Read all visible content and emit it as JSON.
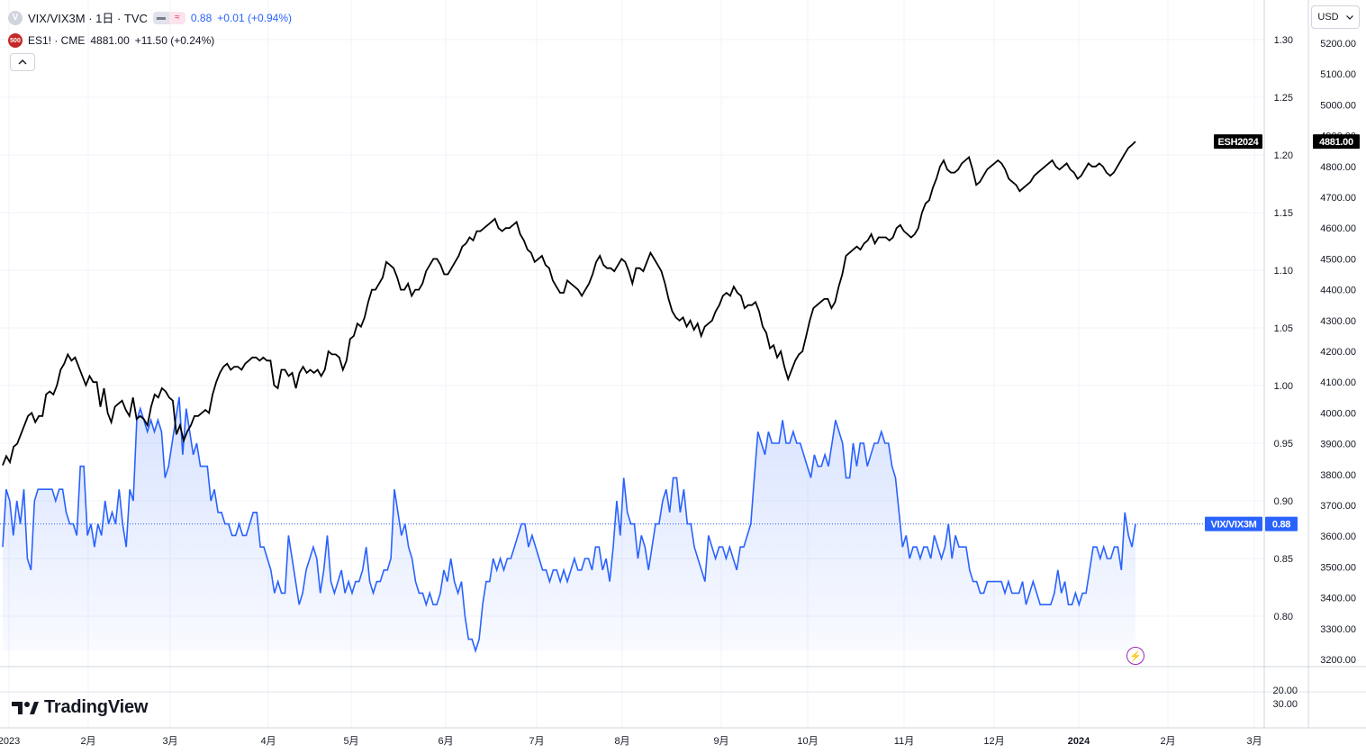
{
  "legend": {
    "main_symbol": "VIX/VIX3M · 1日 · TVC",
    "main_badge": "V",
    "main_price": "0.88",
    "main_change": "+0.01 (+0.94%)",
    "compare_badge": "500",
    "compare_symbol": "ES1! · CME",
    "compare_price": "4881.00",
    "compare_change": "+11.50 (+0.24%)",
    "collapse_icon": "chevron-up-icon"
  },
  "toolbar": {
    "currency": "USD"
  },
  "branding": {
    "logo_text": "TradingView"
  },
  "colors": {
    "vix_line": "#2962ff",
    "es_line": "#000000",
    "grid": "#f0f3fa",
    "accent_purple": "#9c27b0"
  },
  "chart_data": [
    {
      "type": "line",
      "title": "VIX/VIX3M",
      "x_tick_labels": [
        "2023",
        "2月",
        "3月",
        "4月",
        "5月",
        "6月",
        "7月",
        "8月",
        "9月",
        "10月",
        "11月",
        "12月",
        "2024",
        "2月",
        "3月"
      ],
      "y_ticks_left": [
        "1.30",
        "1.25",
        "1.20",
        "1.15",
        "1.10",
        "1.05",
        "1.00",
        "0.95",
        "0.90",
        "0.85",
        "0.80"
      ],
      "y_ticks_right": [
        "5200.00",
        "5100.00",
        "5000.00",
        "4900.00",
        "4800.00",
        "4700.00",
        "4600.00",
        "4500.00",
        "4400.00",
        "4300.00",
        "4200.00",
        "4100.00",
        "4000.00",
        "3900.00",
        "3800.00",
        "3700.00",
        "3600.00",
        "3500.00",
        "3400.00",
        "3300.00",
        "3200.00"
      ],
      "pane2_ticks": [
        "20.00",
        "30.00"
      ],
      "series": [
        {
          "name": "VIX/VIX3M",
          "last_label": "VIX/VIX3M",
          "last_value": "0.88",
          "values": [
            0.86,
            0.91,
            0.9,
            0.87,
            0.9,
            0.88,
            0.91,
            0.85,
            0.84,
            0.9,
            0.91,
            0.91,
            0.91,
            0.91,
            0.91,
            0.9,
            0.91,
            0.91,
            0.89,
            0.88,
            0.88,
            0.87,
            0.93,
            0.93,
            0.87,
            0.88,
            0.86,
            0.88,
            0.87,
            0.9,
            0.88,
            0.89,
            0.88,
            0.91,
            0.88,
            0.86,
            0.91,
            0.9,
            0.97,
            0.98,
            0.97,
            0.96,
            0.97,
            0.96,
            0.97,
            0.96,
            0.92,
            0.93,
            0.95,
            0.97,
            0.99,
            0.94,
            0.98,
            0.96,
            0.94,
            0.95,
            0.93,
            0.93,
            0.93,
            0.9,
            0.91,
            0.89,
            0.89,
            0.88,
            0.88,
            0.87,
            0.87,
            0.88,
            0.87,
            0.87,
            0.88,
            0.89,
            0.89,
            0.86,
            0.86,
            0.85,
            0.84,
            0.82,
            0.83,
            0.82,
            0.82,
            0.87,
            0.85,
            0.83,
            0.81,
            0.82,
            0.84,
            0.85,
            0.86,
            0.85,
            0.82,
            0.84,
            0.87,
            0.83,
            0.82,
            0.83,
            0.84,
            0.82,
            0.83,
            0.82,
            0.83,
            0.83,
            0.84,
            0.86,
            0.83,
            0.82,
            0.83,
            0.83,
            0.84,
            0.84,
            0.85,
            0.91,
            0.89,
            0.87,
            0.88,
            0.86,
            0.85,
            0.83,
            0.82,
            0.82,
            0.81,
            0.82,
            0.81,
            0.81,
            0.82,
            0.84,
            0.83,
            0.85,
            0.83,
            0.82,
            0.83,
            0.8,
            0.78,
            0.78,
            0.77,
            0.78,
            0.81,
            0.83,
            0.83,
            0.85,
            0.84,
            0.85,
            0.84,
            0.85,
            0.85,
            0.86,
            0.87,
            0.88,
            0.88,
            0.86,
            0.87,
            0.86,
            0.85,
            0.84,
            0.84,
            0.83,
            0.84,
            0.84,
            0.83,
            0.84,
            0.83,
            0.84,
            0.85,
            0.84,
            0.84,
            0.85,
            0.85,
            0.84,
            0.86,
            0.86,
            0.84,
            0.85,
            0.83,
            0.86,
            0.9,
            0.87,
            0.92,
            0.89,
            0.88,
            0.88,
            0.85,
            0.87,
            0.86,
            0.84,
            0.86,
            0.88,
            0.88,
            0.9,
            0.91,
            0.89,
            0.92,
            0.92,
            0.89,
            0.91,
            0.88,
            0.88,
            0.86,
            0.85,
            0.84,
            0.83,
            0.87,
            0.86,
            0.85,
            0.86,
            0.86,
            0.85,
            0.86,
            0.85,
            0.84,
            0.86,
            0.86,
            0.87,
            0.88,
            0.92,
            0.96,
            0.95,
            0.94,
            0.96,
            0.95,
            0.95,
            0.95,
            0.97,
            0.95,
            0.95,
            0.96,
            0.95,
            0.95,
            0.94,
            0.93,
            0.92,
            0.94,
            0.93,
            0.93,
            0.94,
            0.93,
            0.95,
            0.97,
            0.96,
            0.95,
            0.92,
            0.92,
            0.95,
            0.93,
            0.95,
            0.95,
            0.93,
            0.94,
            0.95,
            0.95,
            0.96,
            0.95,
            0.95,
            0.93,
            0.92,
            0.89,
            0.86,
            0.87,
            0.85,
            0.86,
            0.86,
            0.85,
            0.86,
            0.86,
            0.85,
            0.87,
            0.86,
            0.85,
            0.86,
            0.88,
            0.85,
            0.87,
            0.86,
            0.86,
            0.86,
            0.84,
            0.83,
            0.83,
            0.82,
            0.82,
            0.83,
            0.83,
            0.83,
            0.83,
            0.83,
            0.82,
            0.83,
            0.82,
            0.82,
            0.82,
            0.83,
            0.81,
            0.82,
            0.83,
            0.82,
            0.81,
            0.81,
            0.81,
            0.81,
            0.82,
            0.84,
            0.82,
            0.83,
            0.81,
            0.81,
            0.82,
            0.81,
            0.82,
            0.82,
            0.84,
            0.86,
            0.86,
            0.85,
            0.86,
            0.85,
            0.85,
            0.86,
            0.86,
            0.84,
            0.89,
            0.87,
            0.86,
            0.88
          ]
        },
        {
          "name": "ESH2024",
          "last_label": "ESH2024",
          "last_value": "4881.00",
          "values": [
            3830,
            3860,
            3840,
            3890,
            3900,
            3930,
            3960,
            3990,
            4000,
            3970,
            3990,
            3990,
            4060,
            4070,
            4060,
            4090,
            4140,
            4160,
            4190,
            4170,
            4180,
            4150,
            4120,
            4090,
            4120,
            4100,
            4100,
            4020,
            4080,
            4000,
            3970,
            4020,
            4030,
            4040,
            4010,
            3990,
            4050,
            3980,
            3990,
            3980,
            3960,
            4020,
            4060,
            4050,
            4080,
            4070,
            4050,
            4040,
            3930,
            3960,
            3910,
            3940,
            3960,
            3990,
            3990,
            4000,
            4010,
            4000,
            4060,
            4100,
            4130,
            4150,
            4160,
            4140,
            4150,
            4150,
            4140,
            4160,
            4170,
            4180,
            4180,
            4170,
            4180,
            4170,
            4170,
            4090,
            4080,
            4140,
            4140,
            4120,
            4130,
            4080,
            4130,
            4150,
            4130,
            4140,
            4130,
            4140,
            4120,
            4140,
            4200,
            4190,
            4190,
            4180,
            4140,
            4170,
            4240,
            4250,
            4290,
            4280,
            4310,
            4360,
            4400,
            4400,
            4420,
            4440,
            4490,
            4480,
            4470,
            4440,
            4400,
            4400,
            4420,
            4380,
            4400,
            4400,
            4420,
            4460,
            4480,
            4500,
            4500,
            4480,
            4450,
            4450,
            4470,
            4490,
            4510,
            4540,
            4550,
            4570,
            4560,
            4590,
            4590,
            4600,
            4610,
            4620,
            4630,
            4600,
            4590,
            4600,
            4600,
            4610,
            4620,
            4580,
            4560,
            4530,
            4520,
            4490,
            4500,
            4510,
            4480,
            4470,
            4430,
            4410,
            4390,
            4390,
            4430,
            4420,
            4410,
            4400,
            4380,
            4400,
            4420,
            4450,
            4490,
            4510,
            4480,
            4470,
            4470,
            4460,
            4480,
            4500,
            4490,
            4460,
            4420,
            4470,
            4470,
            4460,
            4490,
            4520,
            4500,
            4480,
            4460,
            4420,
            4370,
            4330,
            4310,
            4300,
            4310,
            4280,
            4300,
            4270,
            4290,
            4250,
            4280,
            4290,
            4300,
            4330,
            4350,
            4380,
            4390,
            4380,
            4410,
            4390,
            4380,
            4340,
            4350,
            4350,
            4360,
            4330,
            4280,
            4260,
            4210,
            4220,
            4180,
            4200,
            4150,
            4110,
            4140,
            4170,
            4190,
            4200,
            4250,
            4300,
            4340,
            4350,
            4360,
            4370,
            4370,
            4340,
            4360,
            4410,
            4450,
            4510,
            4520,
            4530,
            4540,
            4530,
            4550,
            4560,
            4580,
            4550,
            4570,
            4570,
            4570,
            4560,
            4570,
            4600,
            4610,
            4590,
            4580,
            4570,
            4580,
            4600,
            4650,
            4680,
            4690,
            4730,
            4760,
            4800,
            4820,
            4790,
            4780,
            4780,
            4790,
            4810,
            4820,
            4830,
            4790,
            4740,
            4750,
            4770,
            4790,
            4800,
            4810,
            4820,
            4810,
            4790,
            4760,
            4750,
            4740,
            4720,
            4730,
            4740,
            4750,
            4770,
            4780,
            4790,
            4800,
            4810,
            4820,
            4800,
            4790,
            4800,
            4810,
            4790,
            4780,
            4760,
            4770,
            4790,
            4810,
            4800,
            4800,
            4810,
            4800,
            4780,
            4770,
            4780,
            4800,
            4820,
            4840,
            4860,
            4870,
            4881
          ]
        }
      ],
      "ylim_left": [
        0.76,
        1.3
      ],
      "ylim_right": [
        3200,
        5200
      ],
      "grid": true,
      "legend_position": "top-left"
    }
  ]
}
